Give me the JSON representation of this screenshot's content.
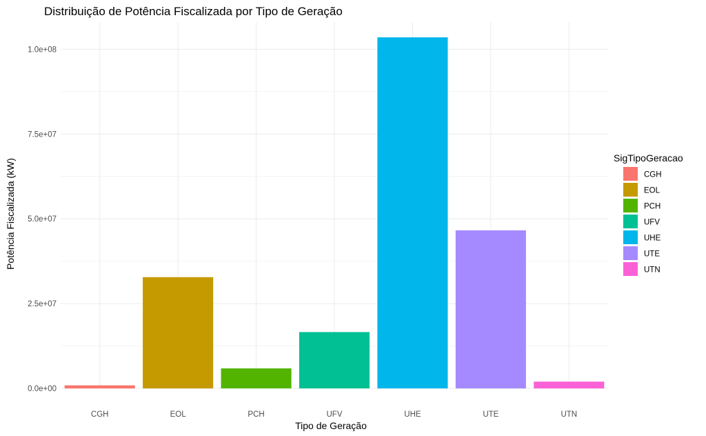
{
  "chart_data": {
    "type": "bar",
    "title": "Distribuição de Potência Fiscalizada por Tipo de Geração",
    "xlabel": "Tipo de Geração",
    "ylabel": "Potência Fiscalizada (kW)",
    "categories": [
      "CGH",
      "EOL",
      "PCH",
      "UFV",
      "UHE",
      "UTE",
      "UTN"
    ],
    "values": [
      900000,
      32800000,
      5900000,
      16600000,
      103500000,
      46600000,
      2000000
    ],
    "colors": [
      "#F8766D",
      "#C49A00",
      "#53B400",
      "#00C094",
      "#00B6EB",
      "#A58AFF",
      "#FB61D7"
    ],
    "ylim": [
      0,
      108000000
    ],
    "yticks": [
      0,
      25000000,
      50000000,
      75000000,
      100000000
    ],
    "ytick_labels": [
      "0.0e+00",
      "2.5e+07",
      "5.0e+07",
      "7.5e+07",
      "1.0e+08"
    ],
    "grid": true,
    "legend": {
      "title": "SigTipoGeracao",
      "position": "right",
      "entries": [
        "CGH",
        "EOL",
        "PCH",
        "UFV",
        "UHE",
        "UTE",
        "UTN"
      ]
    }
  }
}
